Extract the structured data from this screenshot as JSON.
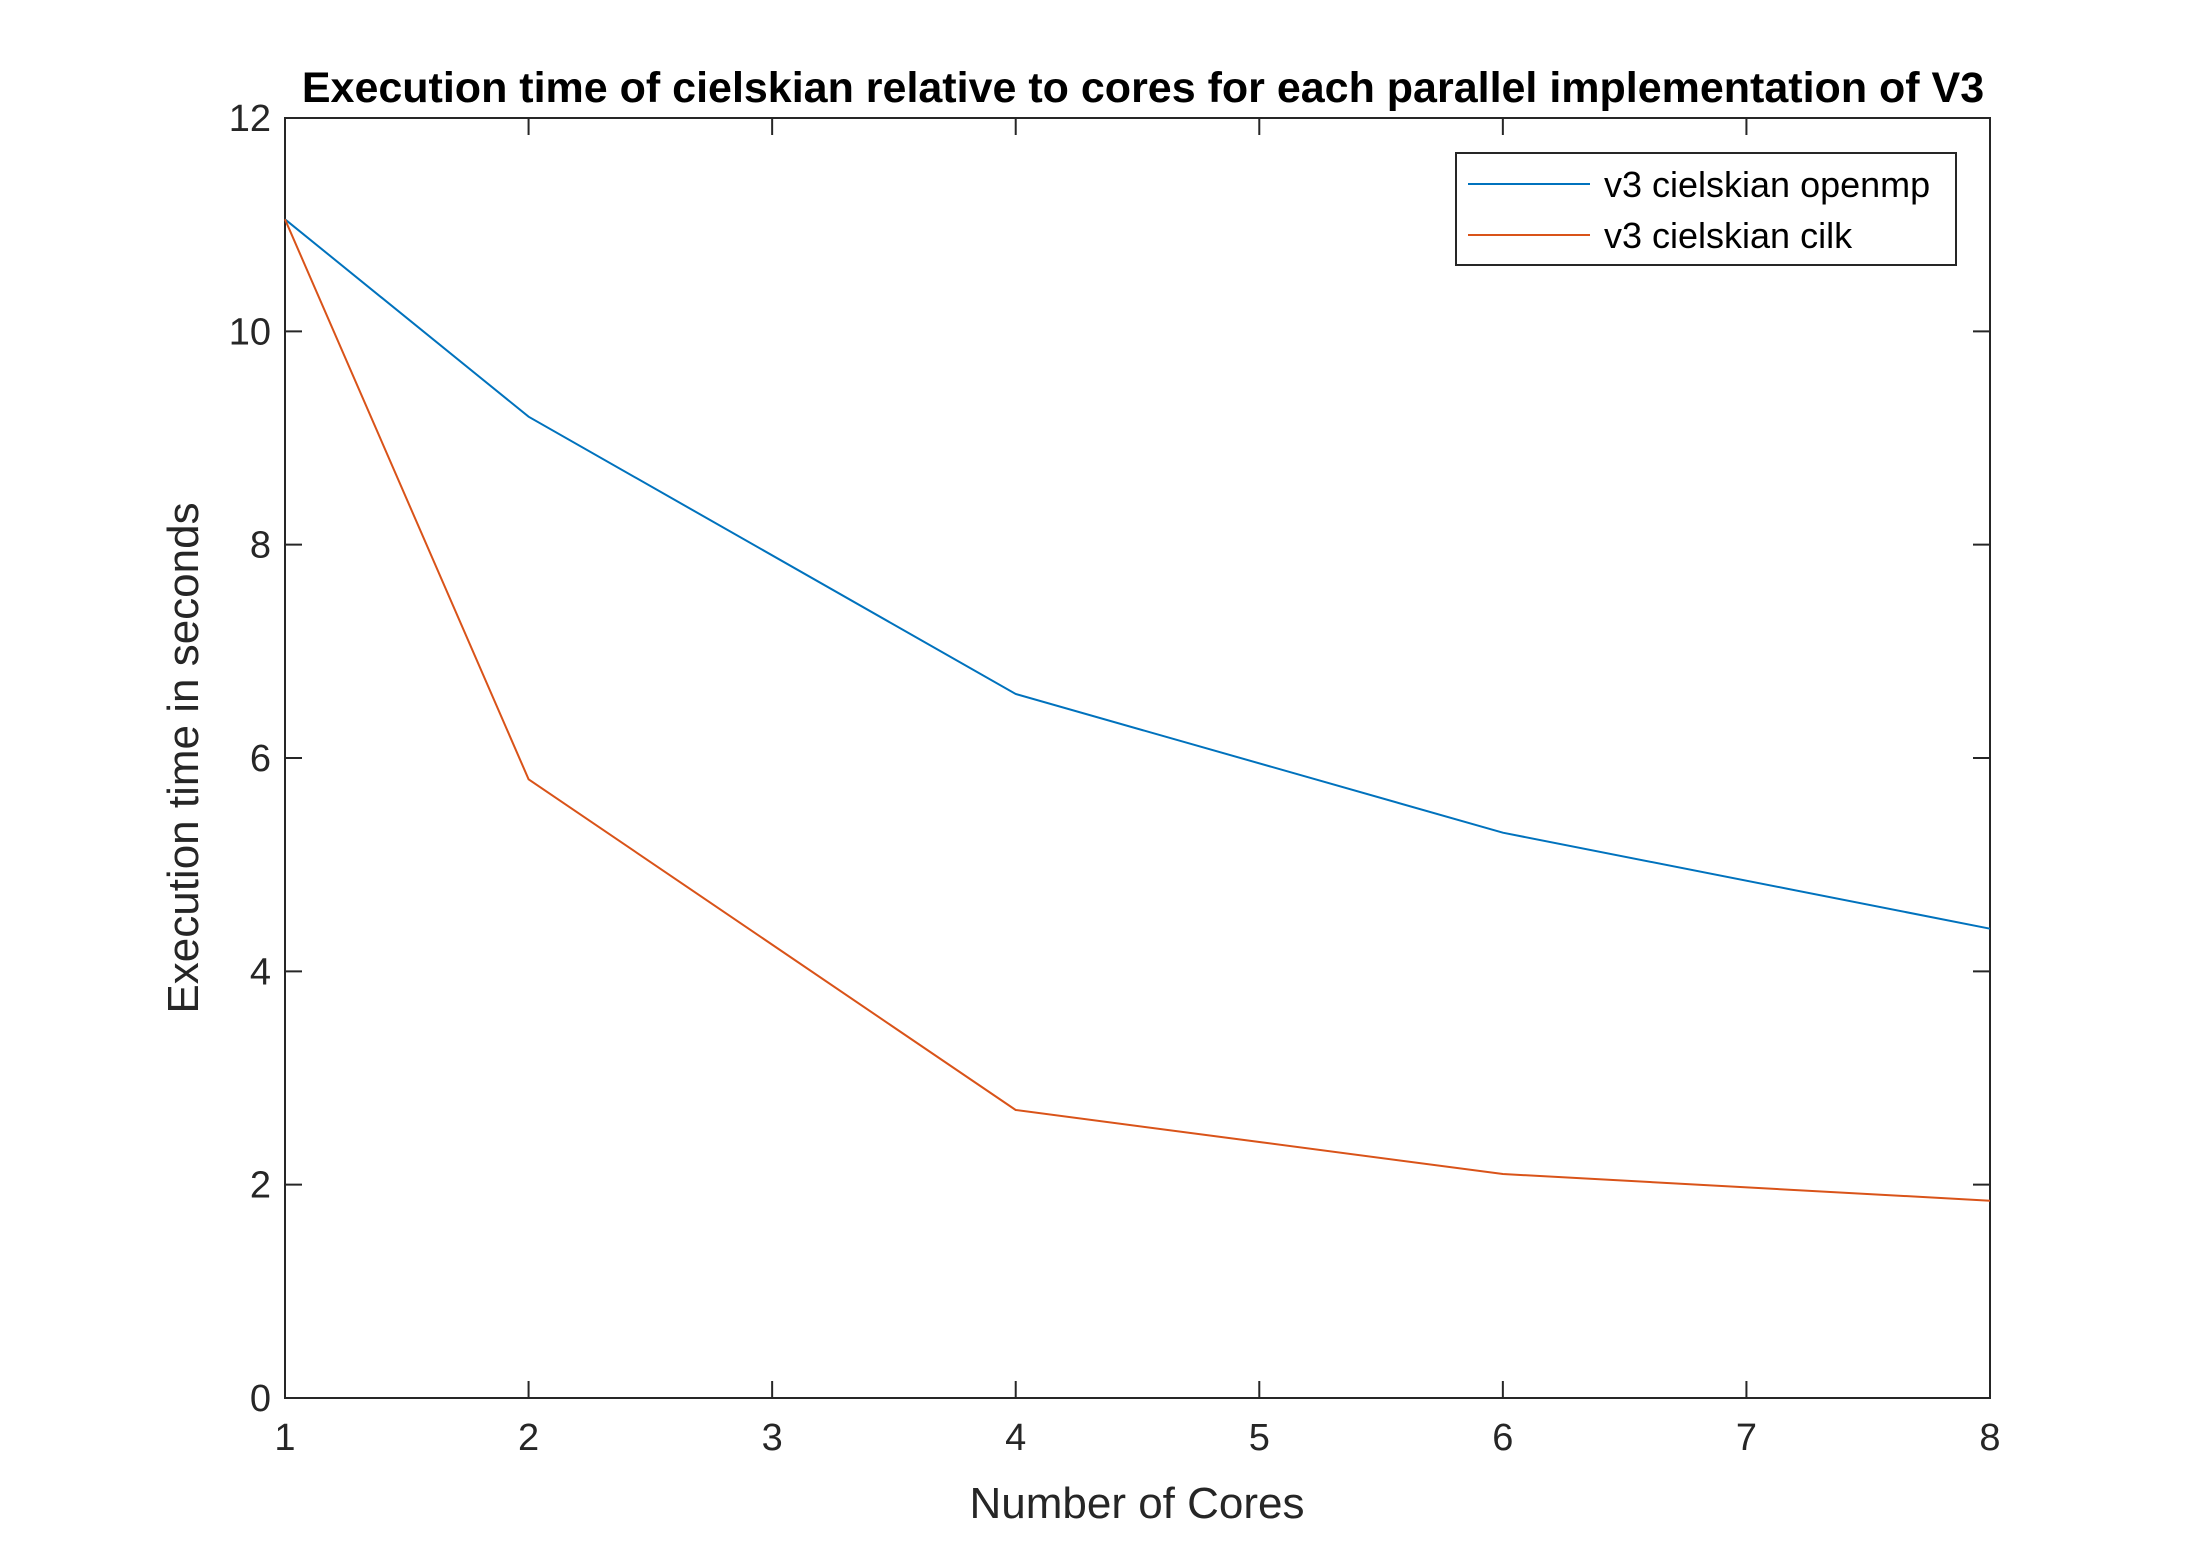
{
  "chart_data": {
    "type": "line",
    "title": "Execution time of cielskian relative to cores for each parallel implementation of V3",
    "xlabel": "Number of Cores",
    "ylabel": "Execution time in seconds",
    "xlim": [
      1,
      8
    ],
    "ylim": [
      0,
      12
    ],
    "xticks": [
      1,
      2,
      3,
      4,
      5,
      6,
      7,
      8
    ],
    "yticks": [
      0,
      2,
      4,
      6,
      8,
      10,
      12
    ],
    "grid": false,
    "legend_position": "top-right",
    "series": [
      {
        "name": "v3 cielskian openmp",
        "color": "#0072BD",
        "x": [
          1,
          2,
          4,
          6,
          8
        ],
        "y": [
          11.05,
          9.2,
          6.6,
          5.3,
          4.4
        ]
      },
      {
        "name": "v3 cielskian cilk",
        "color": "#D95319",
        "x": [
          1,
          2,
          4,
          6,
          8
        ],
        "y": [
          11.05,
          5.8,
          2.7,
          2.1,
          1.85
        ]
      }
    ]
  }
}
